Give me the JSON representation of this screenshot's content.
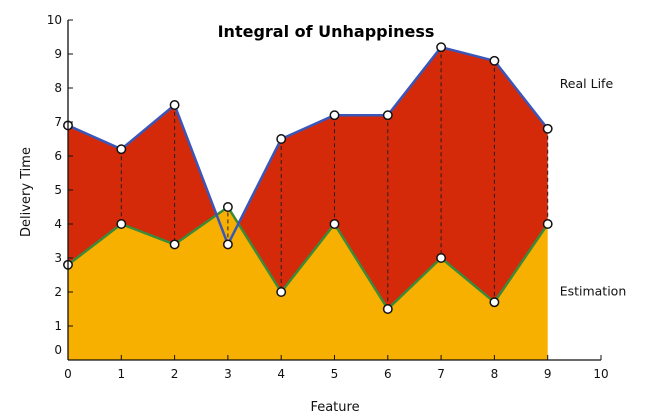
{
  "chart_data": {
    "type": "area",
    "title": "Integral of Unhappiness",
    "xlabel": "Feature",
    "ylabel": "Delivery Time",
    "xlim": [
      0,
      10
    ],
    "ylim": [
      0,
      10
    ],
    "xticks": [
      0,
      1,
      2,
      3,
      4,
      5,
      6,
      7,
      8,
      9,
      10
    ],
    "yticks": [
      0,
      1,
      2,
      3,
      4,
      5,
      6,
      7,
      8,
      9,
      10
    ],
    "grid": false,
    "series": [
      {
        "name": "Real Life",
        "x": [
          0,
          1,
          2,
          3,
          4,
          5,
          6,
          7,
          8,
          9
        ],
        "y": [
          6.9,
          6.2,
          7.5,
          3.4,
          6.5,
          7.2,
          7.2,
          9.2,
          8.8,
          6.8
        ],
        "line_color": "#3a56b8",
        "fill_color": "#d42a0a"
      },
      {
        "name": "Estimation",
        "x": [
          0,
          1,
          2,
          3,
          4,
          5,
          6,
          7,
          8,
          9
        ],
        "y": [
          2.8,
          4.0,
          3.4,
          4.5,
          2.0,
          4.0,
          1.5,
          3.0,
          1.7,
          4.0
        ],
        "line_color": "#3a8a3a",
        "fill_color": "#f7b000"
      }
    ],
    "annotations": [
      {
        "text": "Real Life",
        "x": 9.3,
        "y": 8.0
      },
      {
        "text": "Estimation",
        "x": 9.3,
        "y": 1.9
      }
    ]
  }
}
